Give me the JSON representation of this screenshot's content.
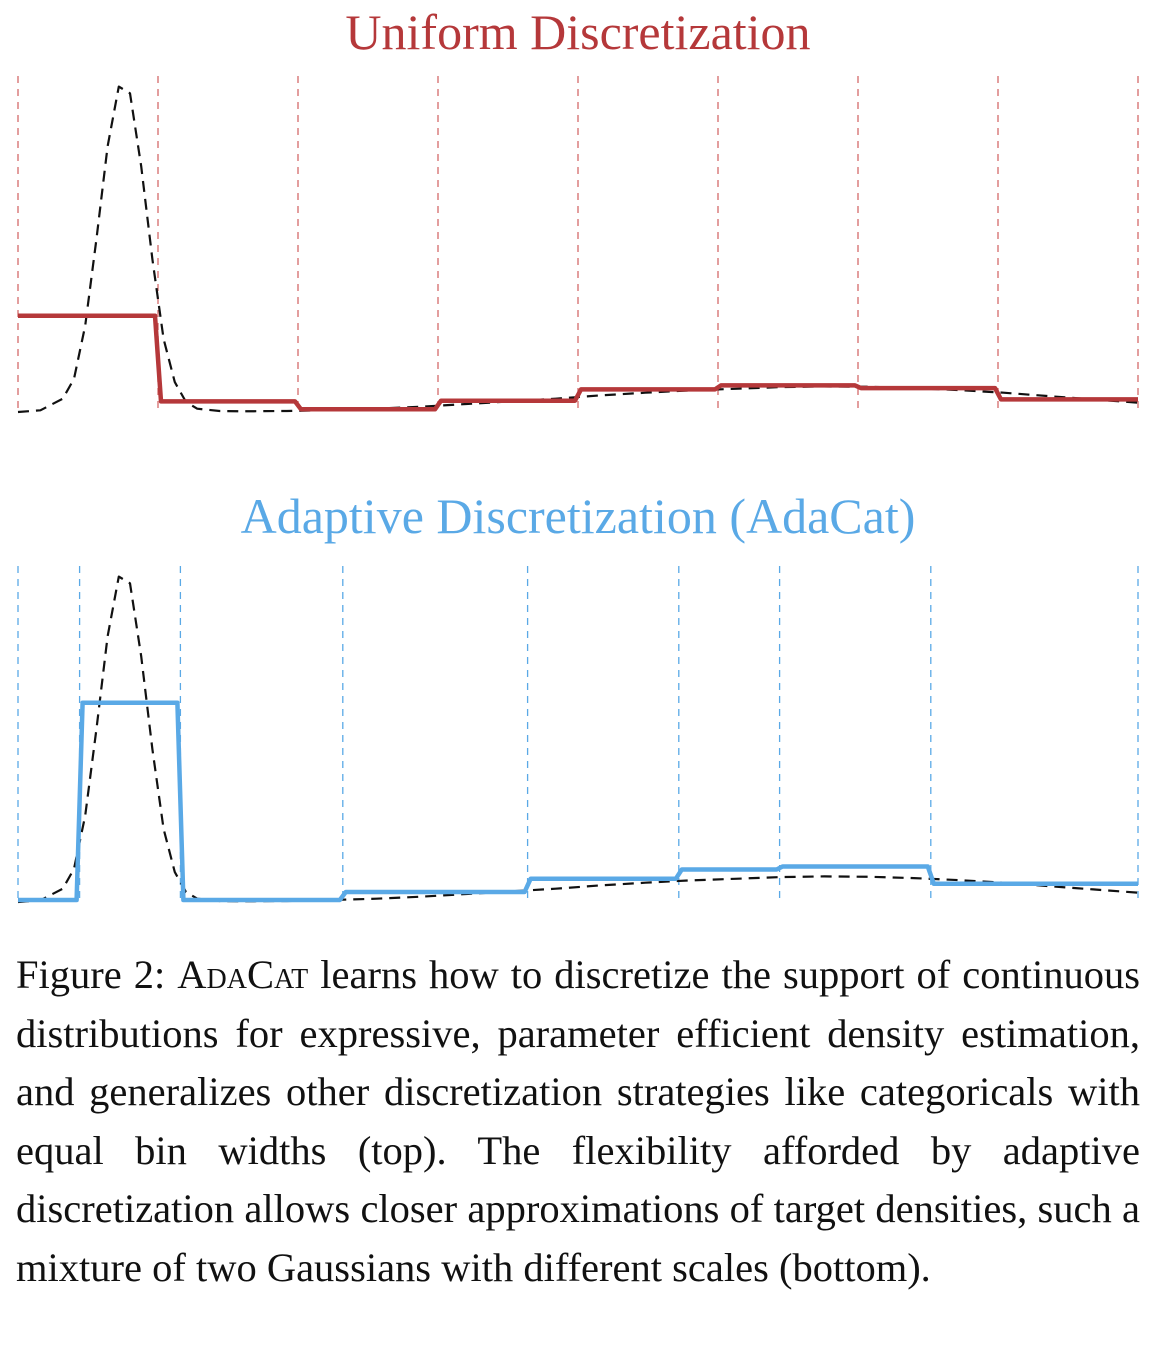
{
  "chart_data": [
    {
      "type": "line",
      "title": "Uniform Discretization",
      "xlim": [
        0,
        1
      ],
      "ylim": [
        0,
        1
      ],
      "colors": {
        "bins": "#b5383a",
        "target": "#111111",
        "boundaries": "#d46a6a"
      },
      "series": [
        {
          "kind": "target-density",
          "x": [
            0.0,
            0.02,
            0.04,
            0.05,
            0.06,
            0.07,
            0.08,
            0.09,
            0.1,
            0.11,
            0.12,
            0.13,
            0.14,
            0.15,
            0.16,
            0.18,
            0.2,
            0.24,
            0.28,
            0.32,
            0.36,
            0.4,
            0.44,
            0.48,
            0.52,
            0.56,
            0.6,
            0.64,
            0.68,
            0.72,
            0.76,
            0.8,
            0.84,
            0.88,
            0.92,
            0.96,
            1.0
          ],
          "y": [
            0.0,
            0.005,
            0.04,
            0.1,
            0.26,
            0.52,
            0.8,
            0.98,
            0.96,
            0.74,
            0.46,
            0.22,
            0.09,
            0.03,
            0.01,
            0.003,
            0.002,
            0.003,
            0.006,
            0.01,
            0.016,
            0.024,
            0.032,
            0.04,
            0.05,
            0.058,
            0.065,
            0.07,
            0.075,
            0.077,
            0.076,
            0.072,
            0.066,
            0.058,
            0.048,
            0.038,
            0.028
          ]
        }
      ],
      "bin_edges": [
        0.0,
        0.125,
        0.25,
        0.375,
        0.5,
        0.625,
        0.75,
        0.875,
        1.0
      ],
      "bin_heights": [
        0.29,
        0.032,
        0.008,
        0.034,
        0.068,
        0.08,
        0.072,
        0.038
      ]
    },
    {
      "type": "line",
      "title": "Adaptive Discretization (AdaCat)",
      "xlim": [
        0,
        1
      ],
      "ylim": [
        0,
        1
      ],
      "colors": {
        "bins": "#5aa9e6",
        "target": "#111111",
        "boundaries": "#5aa9e6"
      },
      "series": [
        {
          "kind": "target-density",
          "x": [
            0.0,
            0.02,
            0.04,
            0.05,
            0.06,
            0.07,
            0.08,
            0.09,
            0.1,
            0.11,
            0.12,
            0.13,
            0.14,
            0.15,
            0.16,
            0.18,
            0.2,
            0.24,
            0.28,
            0.32,
            0.36,
            0.4,
            0.44,
            0.48,
            0.52,
            0.56,
            0.6,
            0.64,
            0.68,
            0.72,
            0.76,
            0.8,
            0.84,
            0.88,
            0.92,
            0.96,
            1.0
          ],
          "y": [
            0.0,
            0.005,
            0.04,
            0.1,
            0.26,
            0.52,
            0.8,
            0.98,
            0.96,
            0.74,
            0.46,
            0.22,
            0.09,
            0.03,
            0.01,
            0.003,
            0.002,
            0.003,
            0.006,
            0.01,
            0.016,
            0.024,
            0.032,
            0.04,
            0.05,
            0.058,
            0.065,
            0.07,
            0.075,
            0.077,
            0.076,
            0.072,
            0.066,
            0.058,
            0.048,
            0.038,
            0.028
          ]
        }
      ],
      "bin_edges": [
        0.0,
        0.055,
        0.145,
        0.29,
        0.455,
        0.59,
        0.68,
        0.815,
        1.0
      ],
      "bin_heights": [
        0.006,
        0.6,
        0.006,
        0.03,
        0.07,
        0.098,
        0.107,
        0.055
      ]
    }
  ],
  "caption": {
    "label": "Figure 2: ",
    "name": "AdaCat",
    "text": " learns how to discretize the support of continuous distributions for expressive, parameter efficient density estimation, and generalizes other discretization strategies like categoricals with equal bin widths (top). The flexibility afforded by adaptive discretization allows closer approximations of target densities, such a mixture of two Gaussians with different scales (bottom)."
  }
}
